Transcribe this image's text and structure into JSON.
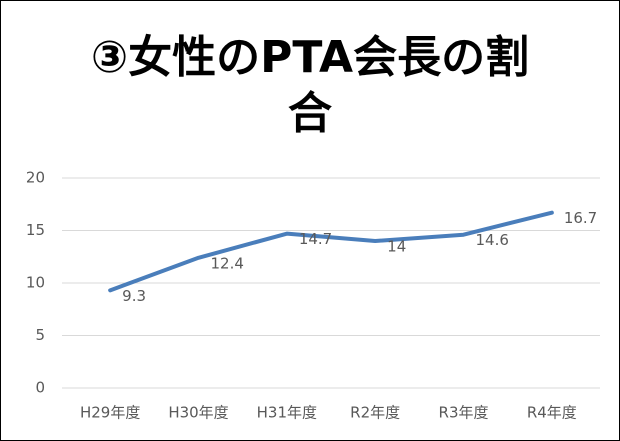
{
  "chart_data": {
    "type": "line",
    "title": "③女性のPTA会長の割合",
    "categories": [
      "H29年度",
      "H30年度",
      "H31年度",
      "R2年度",
      "R3年度",
      "R4年度"
    ],
    "series": [
      {
        "name": "女性のPTA会長の割合",
        "color": "#4a7ebb",
        "values": [
          9.3,
          12.4,
          14.7,
          14,
          14.6,
          16.7
        ]
      }
    ],
    "ylim": [
      0,
      20
    ],
    "yticks": [
      0,
      5,
      10,
      15,
      20
    ],
    "grid": true
  }
}
